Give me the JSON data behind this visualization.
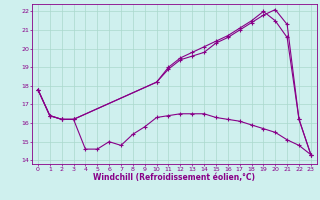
{
  "xlabel": "Windchill (Refroidissement éolien,°C)",
  "background_color": "#cff0ee",
  "grid_color": "#aad8cc",
  "line_color": "#880088",
  "xlim": [
    -0.5,
    23.5
  ],
  "ylim": [
    13.8,
    22.4
  ],
  "yticks": [
    14,
    15,
    16,
    17,
    18,
    19,
    20,
    21,
    22
  ],
  "xticks": [
    0,
    1,
    2,
    3,
    4,
    5,
    6,
    7,
    8,
    9,
    10,
    11,
    12,
    13,
    14,
    15,
    16,
    17,
    18,
    19,
    20,
    21,
    22,
    23
  ],
  "line1_x": [
    0,
    1,
    2,
    3,
    10,
    11,
    12,
    13,
    14,
    15,
    16,
    17,
    18,
    19,
    20,
    21,
    22,
    23
  ],
  "line1_y": [
    17.8,
    16.4,
    16.2,
    16.2,
    18.2,
    18.9,
    19.4,
    19.6,
    19.8,
    20.3,
    20.6,
    21.0,
    21.4,
    21.8,
    22.1,
    21.3,
    16.2,
    14.3
  ],
  "line2_x": [
    0,
    1,
    2,
    3,
    10,
    11,
    12,
    13,
    14,
    15,
    16,
    17,
    18,
    19,
    20,
    21,
    22,
    23
  ],
  "line2_y": [
    17.8,
    16.4,
    16.2,
    16.2,
    18.2,
    19.0,
    19.5,
    19.8,
    20.1,
    20.4,
    20.7,
    21.1,
    21.5,
    22.0,
    21.5,
    20.6,
    16.2,
    14.3
  ],
  "line3_x": [
    0,
    1,
    2,
    3,
    4,
    5,
    6,
    7,
    8,
    9,
    10,
    11,
    12,
    13,
    14,
    15,
    16,
    17,
    18,
    19,
    20,
    21,
    22,
    23
  ],
  "line3_y": [
    17.8,
    16.4,
    16.2,
    16.2,
    14.6,
    14.6,
    15.0,
    14.8,
    15.4,
    15.8,
    16.3,
    16.4,
    16.5,
    16.5,
    16.5,
    16.3,
    16.2,
    16.1,
    15.9,
    15.7,
    15.5,
    15.1,
    14.8,
    14.3
  ]
}
